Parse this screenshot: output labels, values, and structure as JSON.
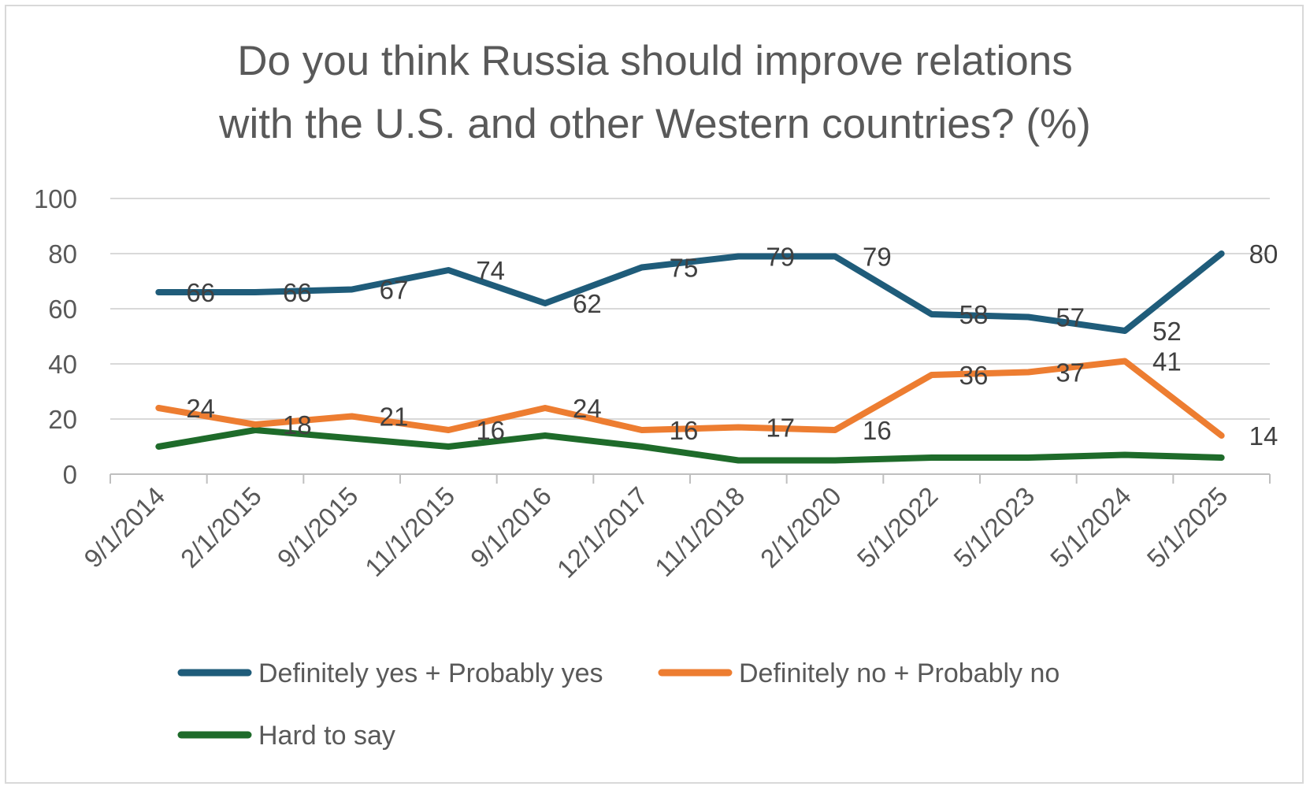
{
  "chart_data": {
    "type": "line",
    "title": [
      "Do you think Russia should improve relations",
      "with the U.S. and other Western countries? (%)"
    ],
    "xlabel": "",
    "ylabel": "",
    "ylim": [
      0,
      100
    ],
    "yticks": [
      0,
      20,
      40,
      60,
      80,
      100
    ],
    "grid": true,
    "legend_position": "bottom",
    "categories": [
      "9/1/2014",
      "2/1/2015",
      "9/1/2015",
      "11/1/2015",
      "9/1/2016",
      "12/1/2017",
      "11/1/2018",
      "2/1/2020",
      "5/1/2022",
      "5/1/2023",
      "5/1/2024",
      "5/1/2025"
    ],
    "series": [
      {
        "name": "Definitely yes + Probably yes",
        "color": "#1f5c7a",
        "values": [
          66,
          66,
          67,
          74,
          62,
          75,
          79,
          79,
          58,
          57,
          52,
          80
        ],
        "data_labels": [
          "66",
          "66",
          "67",
          "74",
          "62",
          "75",
          "79",
          "79",
          "58",
          "57",
          "52",
          "80"
        ]
      },
      {
        "name": "Definitely no + Probably no",
        "color": "#ed7d31",
        "values": [
          24,
          18,
          21,
          16,
          24,
          16,
          17,
          16,
          36,
          37,
          41,
          14
        ],
        "data_labels": [
          "24",
          "18",
          "21",
          "16",
          "24",
          "16",
          "17",
          "16",
          "36",
          "37",
          "41",
          "14"
        ]
      },
      {
        "name": "Hard to say",
        "color": "#1e6b2a",
        "values": [
          10,
          16,
          13,
          10,
          14,
          10,
          5,
          5,
          6,
          6,
          7,
          6
        ],
        "data_labels": []
      }
    ]
  }
}
